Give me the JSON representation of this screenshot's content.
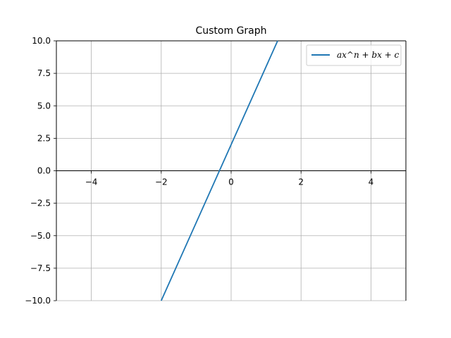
{
  "chart_data": {
    "type": "line",
    "title": "Custom Graph",
    "xlabel": "",
    "ylabel": "",
    "xlim": [
      -5,
      5
    ],
    "ylim": [
      -10,
      10
    ],
    "xticks": [
      -4,
      -2,
      0,
      2,
      4
    ],
    "yticks": [
      -10.0,
      -7.5,
      -5.0,
      -2.5,
      0.0,
      2.5,
      5.0,
      7.5,
      10.0
    ],
    "xtick_labels": [
      "−4",
      "−2",
      "0",
      "2",
      "4"
    ],
    "ytick_labels": [
      "−10.0",
      "−7.5",
      "−5.0",
      "−2.5",
      "0.0",
      "2.5",
      "5.0",
      "7.5",
      "10.0"
    ],
    "grid": true,
    "axis_lines_at_zero": true,
    "legend_position": "top-right",
    "series": [
      {
        "name": "ax^n + bx + c",
        "color": "#1f77b4",
        "x": [
          -2,
          1.33
        ],
        "y": [
          -10,
          10
        ]
      }
    ]
  }
}
